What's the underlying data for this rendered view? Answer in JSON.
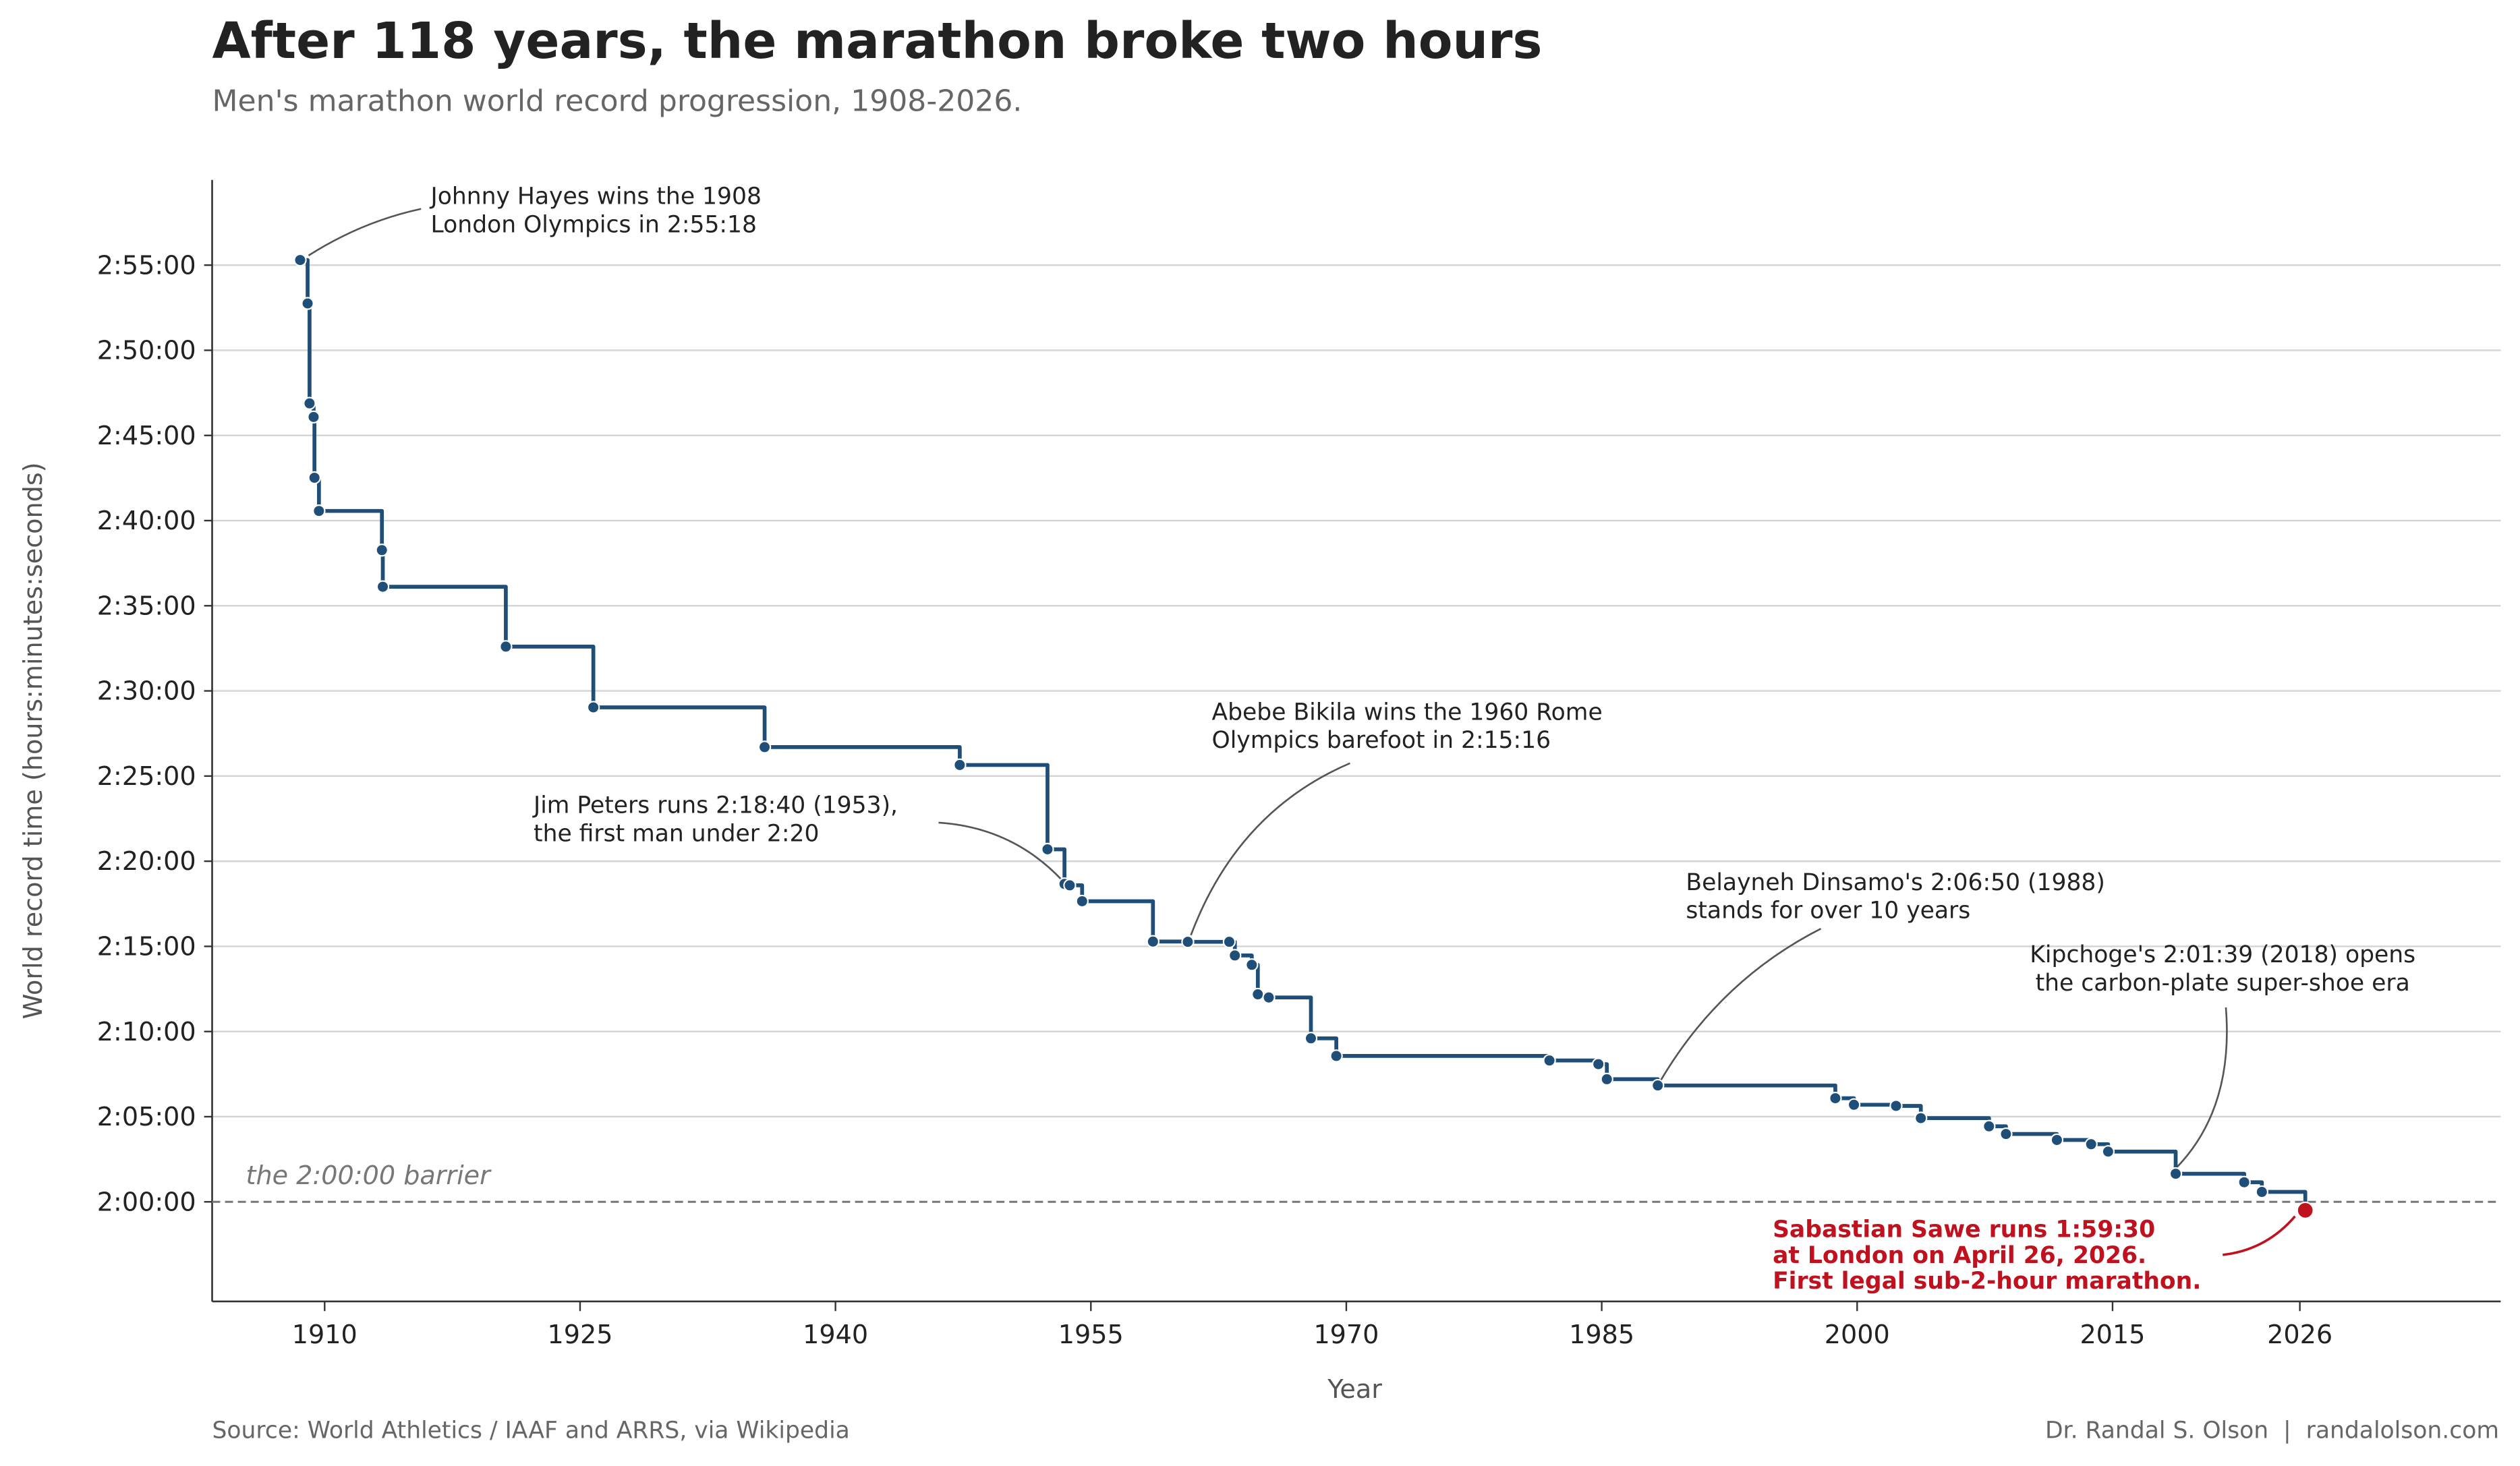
{
  "title": "After 118 years, the marathon broke two hours",
  "subtitle": "Men's marathon world record progression, 1908-2026.",
  "footer": {
    "source": "Source: World Athletics / IAAF and ARRS, via Wikipedia",
    "credit": "Dr. Randal S. Olson  |  randalolson.com"
  },
  "chart_data": {
    "type": "line",
    "style": "step-post with markers",
    "xlabel": "Year",
    "ylabel": "World record time (hours:minutes:seconds)",
    "xlim": [
      1903.4,
      2037.7
    ],
    "ylim": [
      "1:54:10",
      "3:00:00"
    ],
    "x_ticks": [
      "1910",
      "1925",
      "1940",
      "1955",
      "1970",
      "1985",
      "2000",
      "2015",
      "2026"
    ],
    "y_ticks": [
      "2:00:00",
      "2:05:00",
      "2:10:00",
      "2:15:00",
      "2:20:00",
      "2:25:00",
      "2:30:00",
      "2:35:00",
      "2:40:00",
      "2:45:00",
      "2:50:00",
      "2:55:00"
    ],
    "grid": "horizontal",
    "colors": {
      "series": "#1f4e79",
      "highlight": "#c0111f",
      "barrier": "#777777",
      "grid": "#d3d3d3"
    },
    "points": [
      {
        "date": "1908-07-24",
        "time": "2:55:18"
      },
      {
        "date": "1909-01-01",
        "time": "2:52:45"
      },
      {
        "date": "1909-02-12",
        "time": "2:46:53"
      },
      {
        "date": "1909-05-08",
        "time": "2:46:05"
      },
      {
        "date": "1909-05-26",
        "time": "2:42:31"
      },
      {
        "date": "1909-08-31",
        "time": "2:40:34"
      },
      {
        "date": "1913-05-12",
        "time": "2:38:16"
      },
      {
        "date": "1913-05-31",
        "time": "2:36:07"
      },
      {
        "date": "1920-08-22",
        "time": "2:32:36"
      },
      {
        "date": "1925-10-12",
        "time": "2:29:02"
      },
      {
        "date": "1935-11-03",
        "time": "2:26:42"
      },
      {
        "date": "1947-04-19",
        "time": "2:25:39"
      },
      {
        "date": "1952-06-14",
        "time": "2:20:42"
      },
      {
        "date": "1953-06-13",
        "time": "2:18:40"
      },
      {
        "date": "1953-10-04",
        "time": "2:18:35"
      },
      {
        "date": "1954-06-26",
        "time": "2:17:39"
      },
      {
        "date": "1958-08-24",
        "time": "2:15:17"
      },
      {
        "date": "1960-09-10",
        "time": "2:15:16"
      },
      {
        "date": "1963-02-17",
        "time": "2:15:16"
      },
      {
        "date": "1963-06-15",
        "time": "2:14:28"
      },
      {
        "date": "1964-06-13",
        "time": "2:13:55"
      },
      {
        "date": "1964-10-21",
        "time": "2:12:11"
      },
      {
        "date": "1965-06-12",
        "time": "2:12:00"
      },
      {
        "date": "1967-12-03",
        "time": "2:09:36"
      },
      {
        "date": "1969-05-30",
        "time": "2:08:34"
      },
      {
        "date": "1981-12-06",
        "time": "2:08:18"
      },
      {
        "date": "1984-10-21",
        "time": "2:08:05"
      },
      {
        "date": "1985-04-20",
        "time": "2:07:12"
      },
      {
        "date": "1988-04-17",
        "time": "2:06:50"
      },
      {
        "date": "1998-09-20",
        "time": "2:06:05"
      },
      {
        "date": "1999-10-24",
        "time": "2:05:42"
      },
      {
        "date": "2002-04-14",
        "time": "2:05:38"
      },
      {
        "date": "2003-09-28",
        "time": "2:04:55"
      },
      {
        "date": "2007-09-30",
        "time": "2:04:26"
      },
      {
        "date": "2008-09-28",
        "time": "2:03:59"
      },
      {
        "date": "2011-09-25",
        "time": "2:03:38"
      },
      {
        "date": "2013-09-29",
        "time": "2:03:23"
      },
      {
        "date": "2014-09-28",
        "time": "2:02:57"
      },
      {
        "date": "2018-09-16",
        "time": "2:01:39"
      },
      {
        "date": "2022-09-25",
        "time": "2:01:09"
      },
      {
        "date": "2023-10-08",
        "time": "2:00:35"
      },
      {
        "date": "2026-04-26",
        "time": "1:59:30",
        "highlight": true
      }
    ],
    "reference_line": {
      "time": "2:00:00",
      "label": "the 2:00:00 barrier",
      "style": "dashed"
    },
    "annotations": [
      {
        "lines": [
          "Johnny Hayes wins the 1908",
          "London Olympics in 2:55:18"
        ]
      },
      {
        "lines": [
          "Abebe Bikila wins the 1960 Rome",
          "Olympics barefoot in 2:15:16"
        ]
      },
      {
        "lines": [
          "Jim Peters runs 2:18:40 (1953),",
          "the first man under 2:20"
        ]
      },
      {
        "lines": [
          "Belayneh Dinsamo's 2:06:50 (1988)",
          "stands for over 10 years"
        ]
      },
      {
        "lines": [
          "Kipchoge's 2:01:39 (2018) opens",
          "the carbon-plate super-shoe era"
        ]
      },
      {
        "lines": [
          "Sabastian Sawe runs 1:59:30",
          "at London on April 26, 2026.",
          "First legal sub-2-hour marathon."
        ],
        "highlight": true
      }
    ]
  }
}
